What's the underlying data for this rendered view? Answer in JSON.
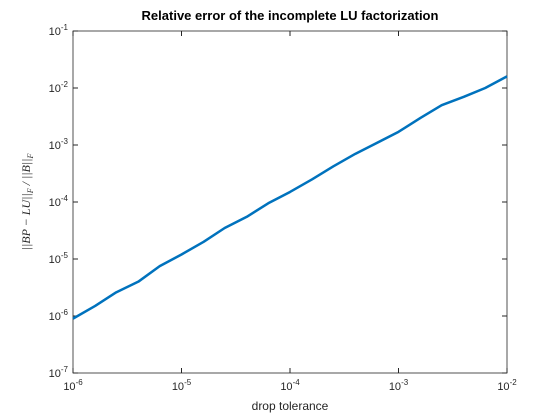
{
  "chart_data": {
    "type": "line",
    "title": "Relative error of the incomplete LU factorization",
    "xlabel": "drop tolerance",
    "ylabel": "||BP − LU||_F / ||B||_F",
    "xscale": "log",
    "yscale": "log",
    "xlim": [
      1e-06,
      0.01
    ],
    "ylim": [
      1e-07,
      0.1
    ],
    "xticks": [
      {
        "value": 1e-06,
        "label": "10^-6"
      },
      {
        "value": 1e-05,
        "label": "10^-5"
      },
      {
        "value": 0.0001,
        "label": "10^-4"
      },
      {
        "value": 0.001,
        "label": "10^-3"
      },
      {
        "value": 0.01,
        "label": "10^-2"
      }
    ],
    "yticks": [
      {
        "value": 1e-07,
        "label": "10^-7"
      },
      {
        "value": 1e-06,
        "label": "10^-6"
      },
      {
        "value": 1e-05,
        "label": "10^-5"
      },
      {
        "value": 0.0001,
        "label": "10^-4"
      },
      {
        "value": 0.001,
        "label": "10^-3"
      },
      {
        "value": 0.01,
        "label": "10^-2"
      },
      {
        "value": 0.1,
        "label": "10^-1"
      }
    ],
    "x": [
      1e-06,
      1.6e-06,
      2.5e-06,
      4e-06,
      6.3e-06,
      1e-05,
      1.6e-05,
      2.5e-05,
      4e-05,
      6.3e-05,
      0.0001,
      0.00016,
      0.00025,
      0.0004,
      0.00055,
      0.001,
      0.0016,
      0.0025,
      0.004,
      0.0063,
      0.01
    ],
    "series": [
      {
        "color": "#0072bd",
        "values": [
          9e-07,
          1.5e-06,
          2.6e-06,
          4e-06,
          7.5e-06,
          1.2e-05,
          2e-05,
          3.5e-05,
          5.5e-05,
          9.5e-05,
          0.00015,
          0.00025,
          0.00042,
          0.0007,
          0.00095,
          0.0017,
          0.003,
          0.005,
          0.007,
          0.01,
          0.016
        ]
      }
    ]
  }
}
